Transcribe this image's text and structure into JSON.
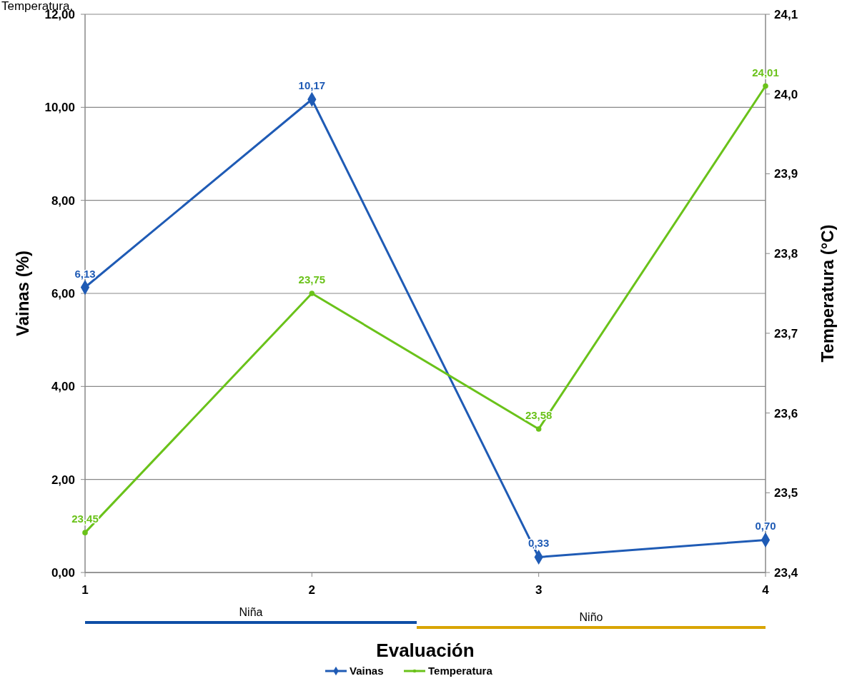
{
  "chart_data": {
    "type": "line",
    "xlabel": "Evaluación",
    "ylabel": "Vainas (%)",
    "y2label": "Temperatura (°C)",
    "annotations": [
      "Temperatura.",
      "Niña",
      "Niño"
    ],
    "x": [
      1,
      2,
      3,
      4
    ],
    "xlim": [
      1,
      4
    ],
    "xticks": [
      1,
      2,
      3,
      4
    ],
    "ylim": [
      0,
      12
    ],
    "yticks": [
      {
        "value": 0,
        "label": "0,00"
      },
      {
        "value": 2,
        "label": "2,00"
      },
      {
        "value": 4,
        "label": "4,00"
      },
      {
        "value": 6,
        "label": "6,00"
      },
      {
        "value": 8,
        "label": "8,00"
      },
      {
        "value": 10,
        "label": "10,00"
      },
      {
        "value": 12,
        "label": "12,00"
      }
    ],
    "y2lim": [
      23.4,
      24.1
    ],
    "y2ticks": [
      {
        "value": 23.4,
        "label": "23,4"
      },
      {
        "value": 23.5,
        "label": "23,5"
      },
      {
        "value": 23.6,
        "label": "23,6"
      },
      {
        "value": 23.7,
        "label": "23,7"
      },
      {
        "value": 23.8,
        "label": "23,8"
      },
      {
        "value": 23.9,
        "label": "23,9"
      },
      {
        "value": 24.0,
        "label": "24,0"
      },
      {
        "value": 24.1,
        "label": "24,1"
      }
    ],
    "grid": "y",
    "legend": "bottom",
    "series": [
      {
        "name": "Vainas",
        "color": "#1f5bb5",
        "marker": "diamond",
        "values": [
          6.13,
          10.17,
          0.33,
          0.7
        ],
        "value_labels": [
          "6,13",
          "10,17",
          "0,33",
          "0,70"
        ]
      },
      {
        "name": "Temperatura",
        "color": "#6ac21a",
        "marker": "circle",
        "axis": "y2",
        "values": [
          23.45,
          23.75,
          23.58,
          24.01
        ],
        "value_labels": [
          "23,45",
          "23,75",
          "23,58",
          "24,01"
        ]
      }
    ]
  }
}
